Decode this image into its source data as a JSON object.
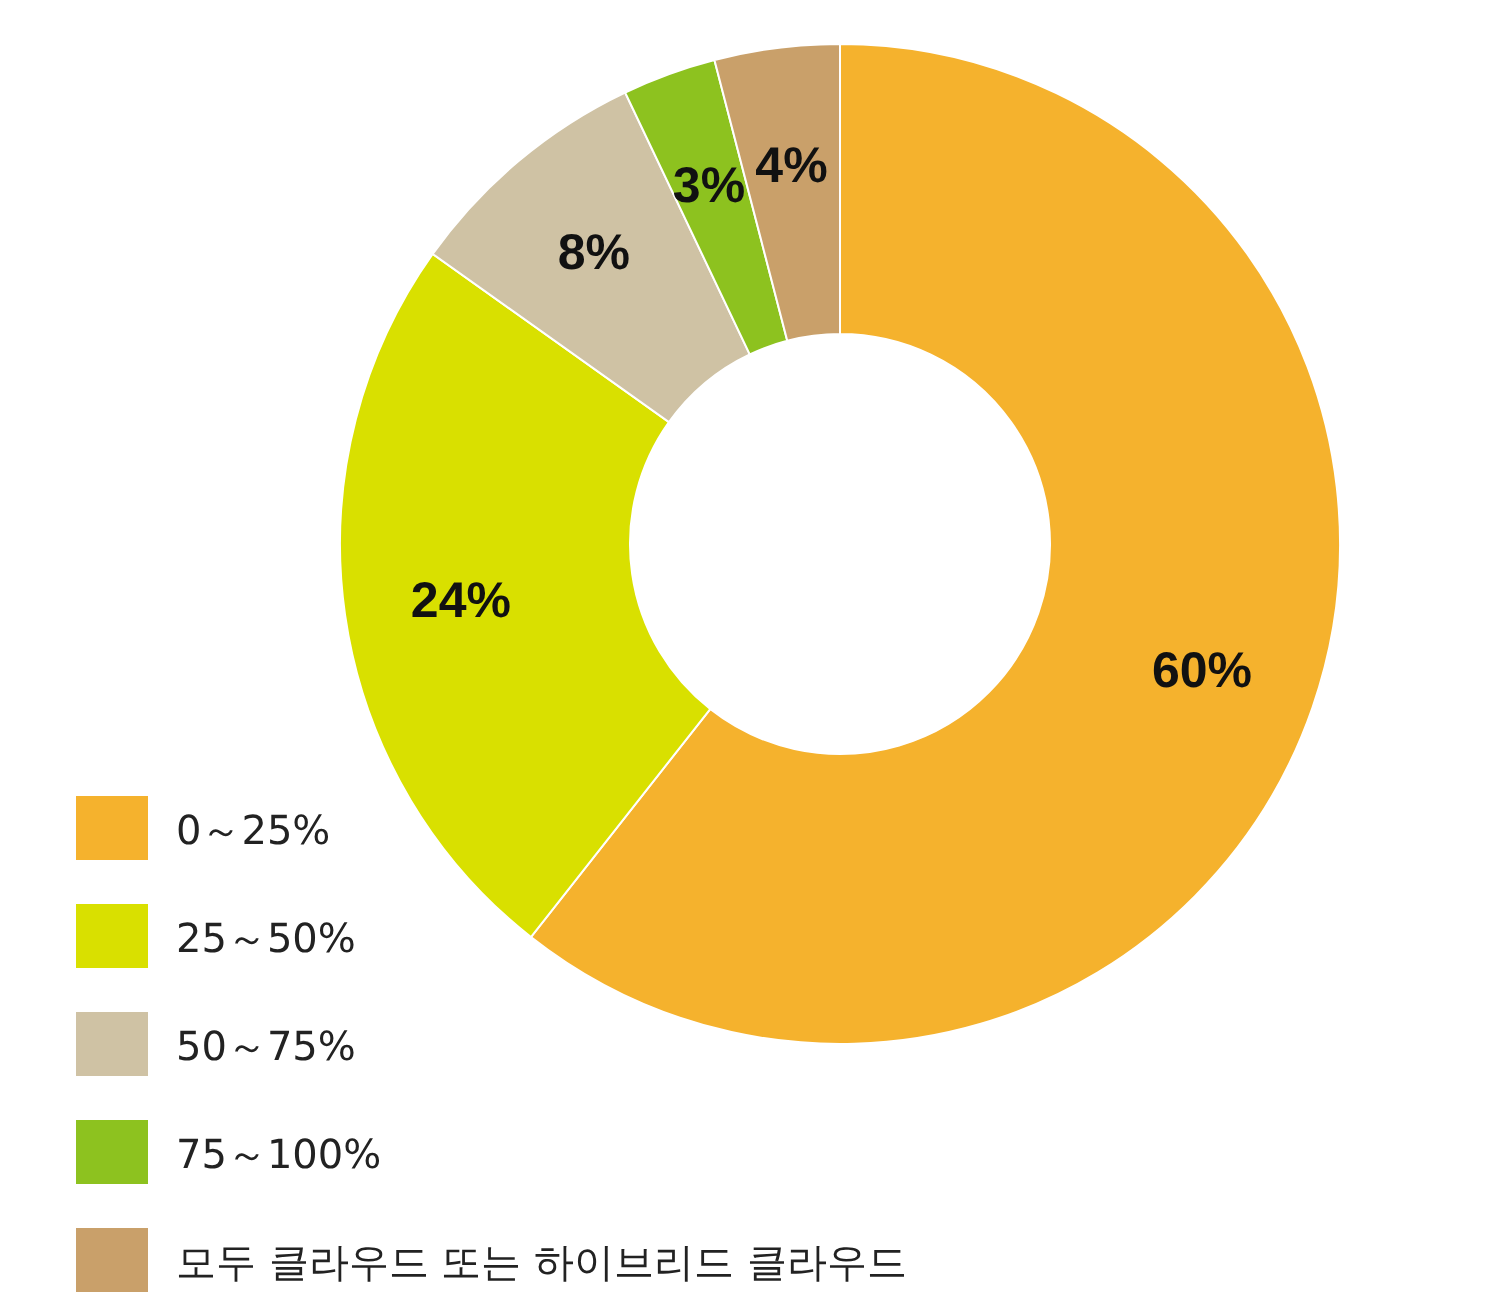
{
  "chart_data": {
    "type": "donut",
    "categories": [
      "0～25%",
      "25～50%",
      "50～75%",
      "75～100%",
      "모두 클라우드 또는 하이브리드 클라우드"
    ],
    "values": [
      60,
      24,
      8,
      3,
      4
    ],
    "value_labels": [
      "60%",
      "24%",
      "8%",
      "3%",
      "4%"
    ],
    "colors": [
      "#f5b22d",
      "#d9e000",
      "#cfc2a4",
      "#8dc21f",
      "#c9a06a"
    ],
    "legend": "bottom left"
  }
}
